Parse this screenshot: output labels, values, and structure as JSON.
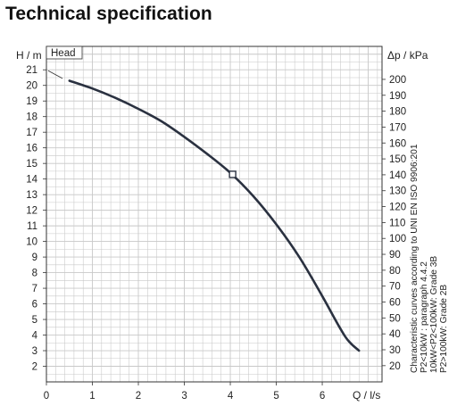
{
  "page": {
    "title": "Technical specification"
  },
  "chart_data": {
    "type": "line",
    "series": [
      {
        "name": "Head",
        "x": [
          0.5,
          1.0,
          1.5,
          2.0,
          2.5,
          3.0,
          3.5,
          4.0,
          4.5,
          5.0,
          5.5,
          6.0,
          6.5,
          6.8
        ],
        "y": [
          20.3,
          19.8,
          19.2,
          18.5,
          17.7,
          16.7,
          15.6,
          14.4,
          12.9,
          11.1,
          9.0,
          6.5,
          3.9,
          3.0
        ]
      }
    ],
    "marker": {
      "x": 4.05,
      "y": 14.3
    },
    "xlim": [
      0,
      7.3
    ],
    "ylim": [
      1,
      22.5
    ],
    "x_ticks": [
      0,
      1,
      2,
      3,
      4,
      5,
      6
    ],
    "y_ticks": [
      2,
      3,
      4,
      5,
      6,
      7,
      8,
      9,
      10,
      11,
      12,
      13,
      14,
      15,
      16,
      17,
      18,
      19,
      20,
      21
    ],
    "y2_ticks": [
      20,
      30,
      40,
      50,
      60,
      70,
      80,
      90,
      100,
      110,
      120,
      130,
      140,
      150,
      160,
      170,
      180,
      190,
      200
    ],
    "y2_factor": 9.81,
    "xlabel": "Q / l/s",
    "ylabel": "H / m",
    "y2label": "Δp / kPa",
    "grid": true,
    "legend_label": "Head",
    "annotations": [
      "Characteristic curves according to UNI EN ISO 9906:201",
      "P2<10kW : paragraph 4.4.2",
      "10kW<P2<100kW: Grade 3B",
      "P2>100kW: Grade 2B"
    ],
    "colors": {
      "curve": "#2a3140",
      "grid": "#c8c8c8",
      "axis": "#333333"
    }
  }
}
